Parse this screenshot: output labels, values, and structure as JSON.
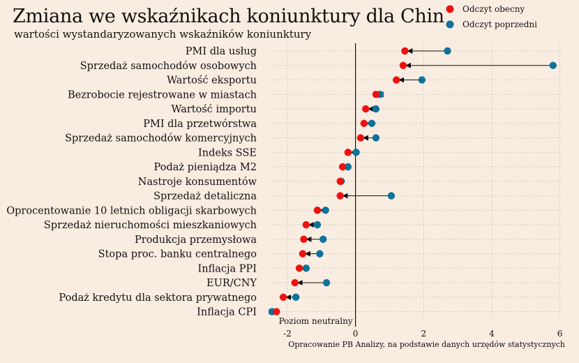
{
  "title": "Zmiana we wskaźnikach koniunktury dla Chin",
  "subtitle": "wartości wystandaryzowanych wskaźników koniunktury",
  "source_note": "Opracowanie PB Analizy, na podstawie danych urzędów statystycznych",
  "neutral_label": "Poziom neutralny",
  "colors": {
    "current": "#ee1111",
    "previous": "#0e7399",
    "background": "#f9ece1"
  },
  "chart_data": {
    "type": "scatter",
    "orientation": "horizontal-dumbbell",
    "categories": [
      "PMI dla usług",
      "Sprzedaż samochodów osobowych",
      "Wartość eksportu",
      "Bezrobocie rejestrowane w miastach",
      "Wartość importu",
      "PMI dla przetwórstwa",
      "Sprzedaż samochodów komercyjnych",
      "Indeks SSE",
      "Podaż pieniądza M2",
      "Nastroje konsumentów",
      "Sprzedaż detaliczna",
      "Oprocentowanie 10 letnich obligacji skarbowych",
      "Sprzedaż nieruchomości mieszkaniowych",
      "Produkcja przemysłowa",
      "Stopa proc. banku centralnego",
      "Inflacja PPI",
      "EUR/CNY",
      "Podaż kredytu dla sektora prywatnego",
      "Inflacja CPI"
    ],
    "series": [
      {
        "name": "Odczyt obecny",
        "color": "#ee1111",
        "values": [
          1.45,
          1.4,
          1.2,
          0.6,
          0.3,
          0.25,
          0.15,
          -0.22,
          -0.38,
          -0.45,
          -0.45,
          -1.12,
          -1.45,
          -1.52,
          -1.55,
          -1.65,
          -1.78,
          -2.12,
          -2.32
        ]
      },
      {
        "name": "Odczyt poprzedni",
        "color": "#0e7399",
        "values": [
          2.7,
          5.8,
          1.95,
          0.72,
          0.6,
          0.48,
          0.6,
          0.02,
          -0.22,
          -0.42,
          1.05,
          -0.88,
          -1.12,
          -0.95,
          -1.05,
          -1.45,
          -0.85,
          -1.75,
          -2.45
        ]
      }
    ],
    "xticks": [
      -2,
      0,
      2,
      4,
      6
    ],
    "xlim": [
      -2.45,
      6.05
    ],
    "grid": true,
    "legend_position": "top-right",
    "reference_line": 0
  }
}
